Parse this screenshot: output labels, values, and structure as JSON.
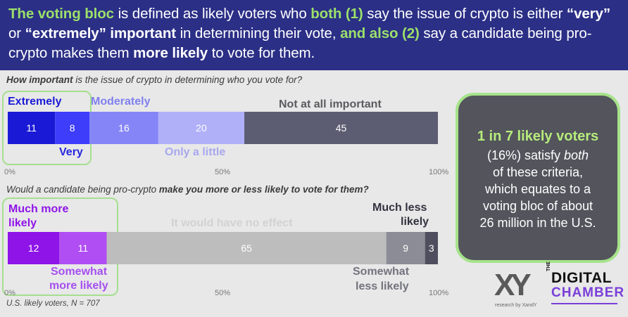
{
  "header": {
    "p1": "The voting bloc",
    "p2": " is defined as likely voters who ",
    "p3": "both (1)",
    "p4": " say the issue of crypto is either ",
    "p5": "“very”",
    "p6": " or ",
    "p7": "“extremely” important",
    "p8": " in determining their vote, ",
    "p9": "and also (2)",
    "p10": " say a candidate being pro-crypto makes them ",
    "p11": "more likely",
    "p12": " to vote for them."
  },
  "q1": {
    "pre": "How important",
    "post": " is the issue of crypto in determining who you vote for?"
  },
  "q2": {
    "pre": "Would a candidate being pro-crypto ",
    "mid": "make you more or less likely to vote for them?"
  },
  "axis_labels": {
    "min": "0%",
    "mid": "50%",
    "max": "100%"
  },
  "chart_data": [
    {
      "type": "bar",
      "orientation": "horizontal-stacked",
      "title": "How important is the issue of crypto in determining who you vote for?",
      "categories": [
        "Extremely",
        "Very",
        "Moderately",
        "Only a little",
        "Not at all important"
      ],
      "values": [
        11,
        8,
        16,
        20,
        45
      ],
      "colors": [
        "#1a1ad6",
        "#3d3dfa",
        "#8585f7",
        "#b0b0f9",
        "#5c5c72"
      ],
      "label_colors": [
        "#1a1ad6",
        "#1a1ad6",
        "#8080f0",
        "#a8a8ef",
        "#5a5a60"
      ],
      "xlim": [
        0,
        100
      ]
    },
    {
      "type": "bar",
      "orientation": "horizontal-stacked",
      "title": "Would a candidate being pro-crypto make you more or less likely to vote for them?",
      "categories": [
        "Much more likely",
        "Somewhat more likely",
        "It would have no effect",
        "Somewhat less likely",
        "Much less likely"
      ],
      "values": [
        12,
        11,
        65,
        9,
        3
      ],
      "colors": [
        "#8f14e8",
        "#b04ef3",
        "#bdbdbd",
        "#8c8c97",
        "#4e4e5e"
      ],
      "label_colors": [
        "#8f14e8",
        "#a54ff0",
        "#ffffff",
        "#73737f",
        "#333340"
      ],
      "xlim": [
        0,
        100
      ]
    }
  ],
  "labels1": {
    "extremely": "Extremely",
    "very": "Very",
    "moderately": "Moderately",
    "only_a_little": "Only a little",
    "not_at_all": "Not at all important"
  },
  "labels2": {
    "much_more_1": "Much more",
    "much_more_2": "likely",
    "somewhat_more_1": "Somewhat",
    "somewhat_more_2": "more likely",
    "no_effect": "It would have no effect",
    "somewhat_less_1": "Somewhat",
    "somewhat_less_2": "less likely",
    "much_less_1": "Much less",
    "much_less_2": "likely"
  },
  "callout": {
    "headline": "1 in 7 likely voters",
    "line1_pre": "(16%) satisfy ",
    "line1_em": "both",
    "line2": "of these criteria,",
    "line3": "which equates to a",
    "line4": "voting bloc of about",
    "line5": "26 million in the U.S."
  },
  "note": "U.S. likely voters, N = 707",
  "logos": {
    "xy": "XY",
    "xy_sub": "research by XandY",
    "dc_the": "THE",
    "dc_line1": "DIGITAL",
    "dc_line2": "CHAMBER"
  },
  "colors": {
    "header_bg": "#2b2f86",
    "highlight_green": "#9be06b",
    "callout_bg": "#53545c"
  }
}
